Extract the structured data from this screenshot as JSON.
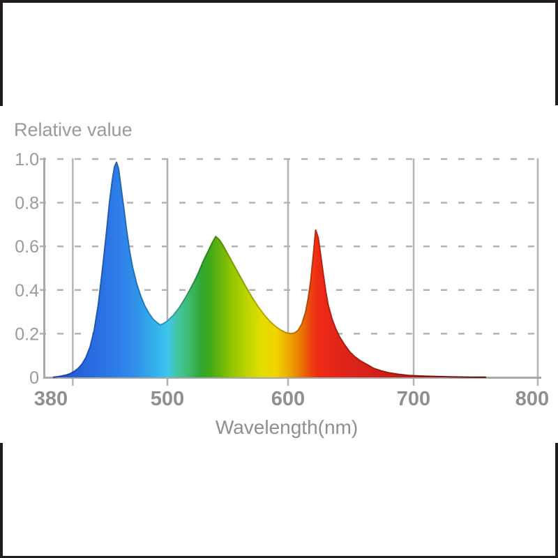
{
  "frame": {
    "style": "black page border: full top edge, full bottom edge, side borders only above the chart (header cell) and below the chart (footer cell)"
  },
  "colors": {
    "background": "#ffffff",
    "frame_border": "#221c1c",
    "axis": "#a8a8a8",
    "grid": "#b3b3b3",
    "title_text": "#9a9a9a",
    "axis_label_text": "#8e8e8e",
    "tick_text": "#8f8f8f"
  },
  "chart_data": {
    "type": "area",
    "title": "Relative value",
    "xlabel": "Wavelength(nm)",
    "ylabel": "",
    "xlim": [
      380,
      800
    ],
    "ylim": [
      0,
      1.0
    ],
    "x_ticks": [
      {
        "label": "380",
        "value": 380
      },
      {
        "label": "500",
        "value": 500
      },
      {
        "label": "600",
        "value": 600
      },
      {
        "label": "700",
        "value": 700
      },
      {
        "label": "800",
        "value": 800
      }
    ],
    "y_ticks": [
      {
        "label": "1.0",
        "value": 1.0
      },
      {
        "label": "0.8",
        "value": 0.8
      },
      {
        "label": "0.6",
        "value": 0.6
      },
      {
        "label": "0.4",
        "value": 0.4
      },
      {
        "label": "0.2",
        "value": 0.2
      },
      {
        "label": "0",
        "value": 0.0
      }
    ],
    "grid": {
      "horizontal": "dashed at every 0.2 from 0.2 to 1.0",
      "vertical": "solid gray lines",
      "vertical_lines_nm": [
        407,
        500,
        600,
        700,
        800
      ]
    },
    "legend": "none",
    "peaks": [
      {
        "name": "blue LED peak",
        "wavelength_nm": 450,
        "value": 0.99
      },
      {
        "name": "green phosphor peak",
        "wavelength_nm": 540,
        "value": 0.645
      },
      {
        "name": "red peak",
        "wavelength_nm": 622,
        "value": 0.68
      }
    ],
    "valleys": [
      {
        "wavelength_nm": 493,
        "value": 0.24
      },
      {
        "wavelength_nm": 602,
        "value": 0.2
      }
    ],
    "spectrum": [
      [
        388,
        0.001
      ],
      [
        392,
        0.003
      ],
      [
        396,
        0.006
      ],
      [
        400,
        0.01
      ],
      [
        404,
        0.016
      ],
      [
        408,
        0.026
      ],
      [
        412,
        0.04
      ],
      [
        416,
        0.06
      ],
      [
        420,
        0.092
      ],
      [
        424,
        0.14
      ],
      [
        428,
        0.215
      ],
      [
        432,
        0.33
      ],
      [
        436,
        0.49
      ],
      [
        440,
        0.66
      ],
      [
        443,
        0.8
      ],
      [
        446,
        0.91
      ],
      [
        448,
        0.965
      ],
      [
        450,
        0.985
      ],
      [
        452,
        0.955
      ],
      [
        454,
        0.885
      ],
      [
        457,
        0.78
      ],
      [
        460,
        0.67
      ],
      [
        463,
        0.575
      ],
      [
        466,
        0.5
      ],
      [
        470,
        0.425
      ],
      [
        474,
        0.37
      ],
      [
        478,
        0.325
      ],
      [
        482,
        0.292
      ],
      [
        486,
        0.266
      ],
      [
        490,
        0.25
      ],
      [
        493,
        0.24
      ],
      [
        496,
        0.246
      ],
      [
        500,
        0.258
      ],
      [
        505,
        0.285
      ],
      [
        510,
        0.32
      ],
      [
        515,
        0.365
      ],
      [
        520,
        0.415
      ],
      [
        525,
        0.47
      ],
      [
        530,
        0.535
      ],
      [
        534,
        0.58
      ],
      [
        537,
        0.615
      ],
      [
        540,
        0.645
      ],
      [
        543,
        0.63
      ],
      [
        546,
        0.605
      ],
      [
        550,
        0.565
      ],
      [
        555,
        0.515
      ],
      [
        560,
        0.465
      ],
      [
        565,
        0.415
      ],
      [
        570,
        0.368
      ],
      [
        575,
        0.325
      ],
      [
        580,
        0.288
      ],
      [
        585,
        0.256
      ],
      [
        590,
        0.232
      ],
      [
        594,
        0.216
      ],
      [
        598,
        0.205
      ],
      [
        602,
        0.2
      ],
      [
        605,
        0.203
      ],
      [
        608,
        0.215
      ],
      [
        611,
        0.245
      ],
      [
        614,
        0.3
      ],
      [
        616,
        0.36
      ],
      [
        618,
        0.44
      ],
      [
        620,
        0.555
      ],
      [
        622,
        0.675
      ],
      [
        624,
        0.64
      ],
      [
        626,
        0.56
      ],
      [
        628,
        0.475
      ],
      [
        630,
        0.395
      ],
      [
        632,
        0.33
      ],
      [
        635,
        0.268
      ],
      [
        638,
        0.222
      ],
      [
        641,
        0.186
      ],
      [
        645,
        0.15
      ],
      [
        649,
        0.118
      ],
      [
        653,
        0.095
      ],
      [
        658,
        0.074
      ],
      [
        663,
        0.058
      ],
      [
        668,
        0.042
      ],
      [
        674,
        0.03
      ],
      [
        680,
        0.021
      ],
      [
        688,
        0.014
      ],
      [
        696,
        0.009
      ],
      [
        706,
        0.006
      ],
      [
        718,
        0.004
      ],
      [
        732,
        0.002
      ],
      [
        746,
        0.001
      ],
      [
        758,
        0.0005
      ]
    ],
    "gradient_stops": [
      [
        385,
        "#2050c8"
      ],
      [
        420,
        "#2767e0"
      ],
      [
        450,
        "#2e7ce8"
      ],
      [
        470,
        "#2f92e8"
      ],
      [
        490,
        "#36b4ee"
      ],
      [
        500,
        "#3dc6ee"
      ],
      [
        508,
        "#45c5a6"
      ],
      [
        518,
        "#3eba6e"
      ],
      [
        528,
        "#2fa732"
      ],
      [
        536,
        "#43aa16"
      ],
      [
        543,
        "#62b40e"
      ],
      [
        552,
        "#8cc300"
      ],
      [
        565,
        "#bad200"
      ],
      [
        578,
        "#e3dc00"
      ],
      [
        590,
        "#f0d400"
      ],
      [
        598,
        "#edb400"
      ],
      [
        604,
        "#ea9900"
      ],
      [
        612,
        "#ea6c04"
      ],
      [
        618,
        "#ec4410"
      ],
      [
        624,
        "#ee2b14"
      ],
      [
        640,
        "#e22419"
      ],
      [
        660,
        "#d8221a"
      ],
      [
        690,
        "#c41d12"
      ],
      [
        720,
        "#a0180e"
      ],
      [
        760,
        "#701208"
      ]
    ]
  }
}
